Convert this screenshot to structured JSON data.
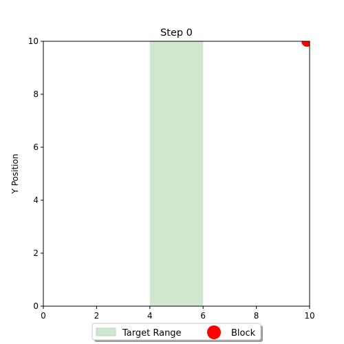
{
  "chart_data": {
    "type": "scatter",
    "title": "Step 0",
    "xlabel": "",
    "ylabel": "Y Position",
    "xlim": [
      0,
      10
    ],
    "ylim": [
      0,
      10
    ],
    "x_ticks": [
      0,
      2,
      4,
      6,
      8,
      10
    ],
    "y_ticks": [
      0,
      2,
      4,
      6,
      8,
      10
    ],
    "grid": false,
    "target_range": {
      "name": "Target Range",
      "x_start": 4,
      "x_end": 6,
      "color": "#cfe6cf"
    },
    "series": [
      {
        "name": "Block",
        "x": [
          9.9
        ],
        "y": [
          10
        ],
        "color": "#ff0000"
      }
    ],
    "legend": {
      "placement": "bottom-center",
      "columns": 2
    }
  }
}
